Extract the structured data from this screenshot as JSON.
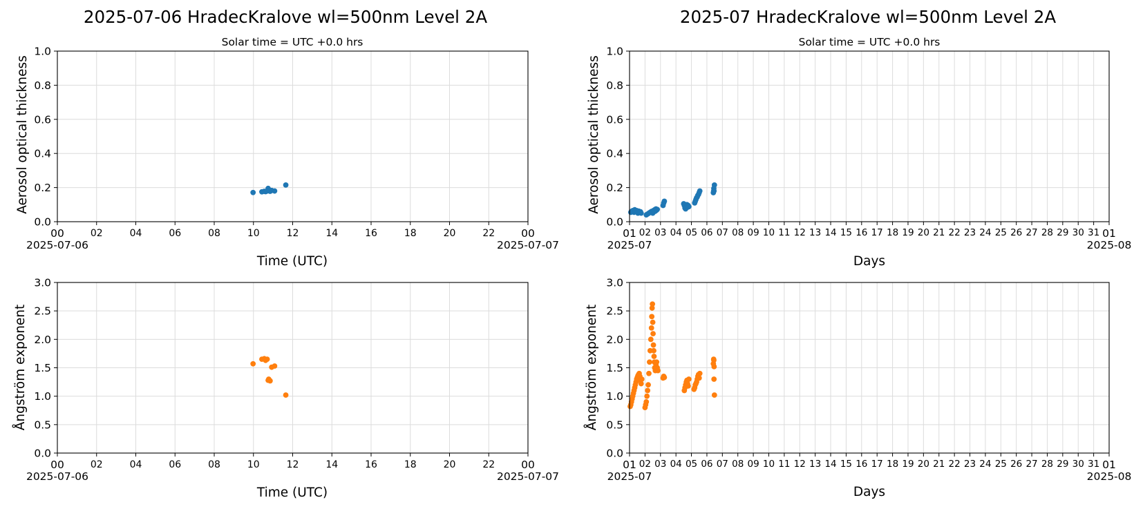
{
  "colors": {
    "aod": "#1f77b4",
    "angstrom": "#ff7f0e",
    "grid": "#dcdcdc"
  },
  "panels": {
    "daily": {
      "title": "2025-07-06  HradecKralove  wl=500nm  Level 2A",
      "subtitle": "Solar time = UTC +0.0 hrs",
      "xlabel": "Time (UTC)",
      "x_tick_labels": [
        "00",
        "02",
        "04",
        "06",
        "08",
        "10",
        "12",
        "14",
        "16",
        "18",
        "20",
        "22",
        "00"
      ],
      "x_start_label": "2025-07-06",
      "x_end_label": "2025-07-07"
    },
    "monthly": {
      "title": "2025-07  HradecKralove  wl=500nm  Level 2A",
      "subtitle": "Solar time = UTC +0.0 hrs",
      "xlabel": "Days",
      "x_tick_labels": [
        "01",
        "02",
        "03",
        "04",
        "05",
        "06",
        "07",
        "08",
        "09",
        "10",
        "11",
        "12",
        "13",
        "14",
        "15",
        "16",
        "17",
        "18",
        "19",
        "20",
        "21",
        "22",
        "23",
        "24",
        "25",
        "26",
        "27",
        "28",
        "29",
        "30",
        "31",
        "01"
      ],
      "x_start_label": "2025-07",
      "x_end_label": "2025-08"
    }
  },
  "chart_data": [
    {
      "type": "scatter",
      "title": "2025-07-06  HradecKralove  wl=500nm  Level 2A",
      "subtitle": "Solar time = UTC +0.0 hrs",
      "xlabel": "Time (UTC)",
      "ylabel": "Aerosol optical thickness",
      "xlim": [
        0,
        24
      ],
      "ylim": [
        0,
        1.0
      ],
      "yticks": [
        "0.0",
        "0.2",
        "0.4",
        "0.6",
        "0.8",
        "1.0"
      ],
      "grid": true,
      "series": [
        {
          "color": "#1f77b4",
          "x": [
            9.98,
            10.43,
            10.55,
            10.62,
            10.7,
            10.75,
            10.78,
            10.85,
            10.93,
            11.08,
            11.65
          ],
          "y": [
            0.171,
            0.175,
            0.178,
            0.176,
            0.18,
            0.195,
            0.183,
            0.178,
            0.183,
            0.18,
            0.215
          ]
        }
      ]
    },
    {
      "type": "scatter",
      "title": "2025-07  HradecKralove  wl=500nm  Level 2A",
      "subtitle": "Solar time = UTC +0.0 hrs",
      "xlabel": "Days",
      "ylabel": "Aerosol optical thickness",
      "xlim": [
        "2025-07-01",
        "2025-08-01"
      ],
      "ylim": [
        0,
        1.0
      ],
      "yticks": [
        "0.0",
        "0.2",
        "0.4",
        "0.6",
        "0.8",
        "1.0"
      ],
      "grid": true,
      "series": [
        {
          "color": "#1f77b4",
          "x": [
            "2025-07-01 02:00",
            "2025-07-01 03:00",
            "2025-07-01 04:00",
            "2025-07-01 05:00",
            "2025-07-01 06:00",
            "2025-07-01 07:00",
            "2025-07-01 08:00",
            "2025-07-01 09:00",
            "2025-07-01 10:00",
            "2025-07-01 11:00",
            "2025-07-01 12:00",
            "2025-07-01 13:00",
            "2025-07-01 14:00",
            "2025-07-01 15:00",
            "2025-07-01 16:00",
            "2025-07-01 17:00",
            "2025-07-01 18:00",
            "2025-07-02 02:00",
            "2025-07-02 04:00",
            "2025-07-02 06:00",
            "2025-07-02 08:00",
            "2025-07-02 10:00",
            "2025-07-02 12:00",
            "2025-07-02 13:00",
            "2025-07-02 14:00",
            "2025-07-02 15:00",
            "2025-07-02 16:00",
            "2025-07-02 17:00",
            "2025-07-02 18:00",
            "2025-07-02 19:00",
            "2025-07-03 04:00",
            "2025-07-03 05:00",
            "2025-07-03 06:00",
            "2025-07-04 12:00",
            "2025-07-04 13:00",
            "2025-07-04 14:00",
            "2025-07-04 15:00",
            "2025-07-04 16:00",
            "2025-07-04 17:00",
            "2025-07-04 18:00",
            "2025-07-04 19:00",
            "2025-07-04 20:00",
            "2025-07-05 05:00",
            "2025-07-05 06:00",
            "2025-07-05 07:00",
            "2025-07-05 08:00",
            "2025-07-05 09:00",
            "2025-07-05 10:00",
            "2025-07-05 11:00",
            "2025-07-05 12:00",
            "2025-07-05 13:00",
            "2025-07-06 10:00",
            "2025-07-06 10:30",
            "2025-07-06 10:45",
            "2025-07-06 11:00",
            "2025-07-06 11:40"
          ],
          "y": [
            0.055,
            0.06,
            0.058,
            0.065,
            0.062,
            0.055,
            0.07,
            0.06,
            0.058,
            0.065,
            0.055,
            0.05,
            0.062,
            0.06,
            0.055,
            0.058,
            0.05,
            0.04,
            0.045,
            0.05,
            0.055,
            0.06,
            0.05,
            0.065,
            0.058,
            0.07,
            0.062,
            0.075,
            0.068,
            0.072,
            0.095,
            0.11,
            0.12,
            0.105,
            0.095,
            0.08,
            0.075,
            0.09,
            0.1,
            0.085,
            0.095,
            0.088,
            0.11,
            0.12,
            0.13,
            0.14,
            0.145,
            0.155,
            0.16,
            0.17,
            0.18,
            0.17,
            0.18,
            0.195,
            0.18,
            0.215
          ]
        }
      ]
    },
    {
      "type": "scatter",
      "title": "",
      "xlabel": "Time (UTC)",
      "ylabel": "Ångström exponent",
      "xlim": [
        0,
        24
      ],
      "ylim": [
        0,
        3.0
      ],
      "yticks": [
        "0.0",
        "0.5",
        "1.0",
        "1.5",
        "2.0",
        "2.5",
        "3.0"
      ],
      "grid": true,
      "series": [
        {
          "color": "#ff7f0e",
          "x": [
            9.98,
            10.43,
            10.55,
            10.62,
            10.7,
            10.75,
            10.78,
            10.85,
            10.93,
            11.08,
            11.65
          ],
          "y": [
            1.57,
            1.65,
            1.66,
            1.63,
            1.65,
            1.28,
            1.3,
            1.27,
            1.51,
            1.53,
            1.02
          ]
        }
      ]
    },
    {
      "type": "scatter",
      "title": "",
      "xlabel": "Days",
      "ylabel": "Ångström exponent",
      "xlim": [
        "2025-07-01",
        "2025-08-01"
      ],
      "ylim": [
        0,
        3.0
      ],
      "yticks": [
        "0.0",
        "0.5",
        "1.0",
        "1.5",
        "2.0",
        "2.5",
        "3.0"
      ],
      "grid": true,
      "series": [
        {
          "color": "#ff7f0e",
          "x": [
            "2025-07-01 01:00",
            "2025-07-01 02:00",
            "2025-07-01 03:00",
            "2025-07-01 04:00",
            "2025-07-01 05:00",
            "2025-07-01 06:00",
            "2025-07-01 07:00",
            "2025-07-01 08:00",
            "2025-07-01 09:00",
            "2025-07-01 10:00",
            "2025-07-01 11:00",
            "2025-07-01 12:00",
            "2025-07-01 13:00",
            "2025-07-01 14:00",
            "2025-07-01 15:00",
            "2025-07-01 16:00",
            "2025-07-01 17:00",
            "2025-07-01 18:00",
            "2025-07-01 19:00",
            "2025-07-02 00:00",
            "2025-07-02 01:00",
            "2025-07-02 02:00",
            "2025-07-02 03:00",
            "2025-07-02 04:00",
            "2025-07-02 05:00",
            "2025-07-02 06:00",
            "2025-07-02 07:00",
            "2025-07-02 08:00",
            "2025-07-02 09:00",
            "2025-07-02 10:00",
            "2025-07-02 10:30",
            "2025-07-02 11:00",
            "2025-07-02 11:30",
            "2025-07-02 12:00",
            "2025-07-02 12:30",
            "2025-07-02 13:00",
            "2025-07-02 13:30",
            "2025-07-02 14:00",
            "2025-07-02 14:30",
            "2025-07-02 15:00",
            "2025-07-02 16:00",
            "2025-07-02 17:00",
            "2025-07-02 18:00",
            "2025-07-02 19:00",
            "2025-07-02 20:00",
            "2025-07-03 04:00",
            "2025-07-03 05:00",
            "2025-07-03 06:00",
            "2025-07-04 13:00",
            "2025-07-04 14:00",
            "2025-07-04 15:00",
            "2025-07-04 16:00",
            "2025-07-04 17:00",
            "2025-07-04 18:00",
            "2025-07-04 19:00",
            "2025-07-04 20:00",
            "2025-07-05 04:00",
            "2025-07-05 05:00",
            "2025-07-05 06:00",
            "2025-07-05 07:00",
            "2025-07-05 08:00",
            "2025-07-05 09:00",
            "2025-07-05 10:00",
            "2025-07-05 11:00",
            "2025-07-05 12:00",
            "2025-07-05 13:00",
            "2025-07-06 10:00",
            "2025-07-06 10:30",
            "2025-07-06 10:45",
            "2025-07-06 11:00",
            "2025-07-06 11:10",
            "2025-07-06 11:40"
          ],
          "y": [
            0.82,
            0.85,
            0.9,
            0.95,
            1.0,
            1.05,
            1.1,
            1.15,
            1.2,
            1.25,
            1.3,
            1.33,
            1.36,
            1.38,
            1.4,
            1.35,
            1.28,
            1.22,
            1.3,
            0.8,
            0.85,
            0.9,
            1.0,
            1.1,
            1.2,
            1.4,
            1.6,
            1.8,
            2.0,
            2.2,
            2.4,
            2.55,
            2.62,
            2.3,
            2.1,
            1.9,
            1.8,
            1.7,
            1.6,
            1.5,
            1.45,
            1.55,
            1.6,
            1.5,
            1.45,
            1.32,
            1.35,
            1.33,
            1.1,
            1.15,
            1.2,
            1.25,
            1.28,
            1.22,
            1.18,
            1.3,
            1.12,
            1.15,
            1.2,
            1.22,
            1.25,
            1.3,
            1.35,
            1.38,
            1.32,
            1.4,
            1.57,
            1.65,
            1.63,
            1.3,
            1.52,
            1.02
          ]
        }
      ]
    }
  ]
}
